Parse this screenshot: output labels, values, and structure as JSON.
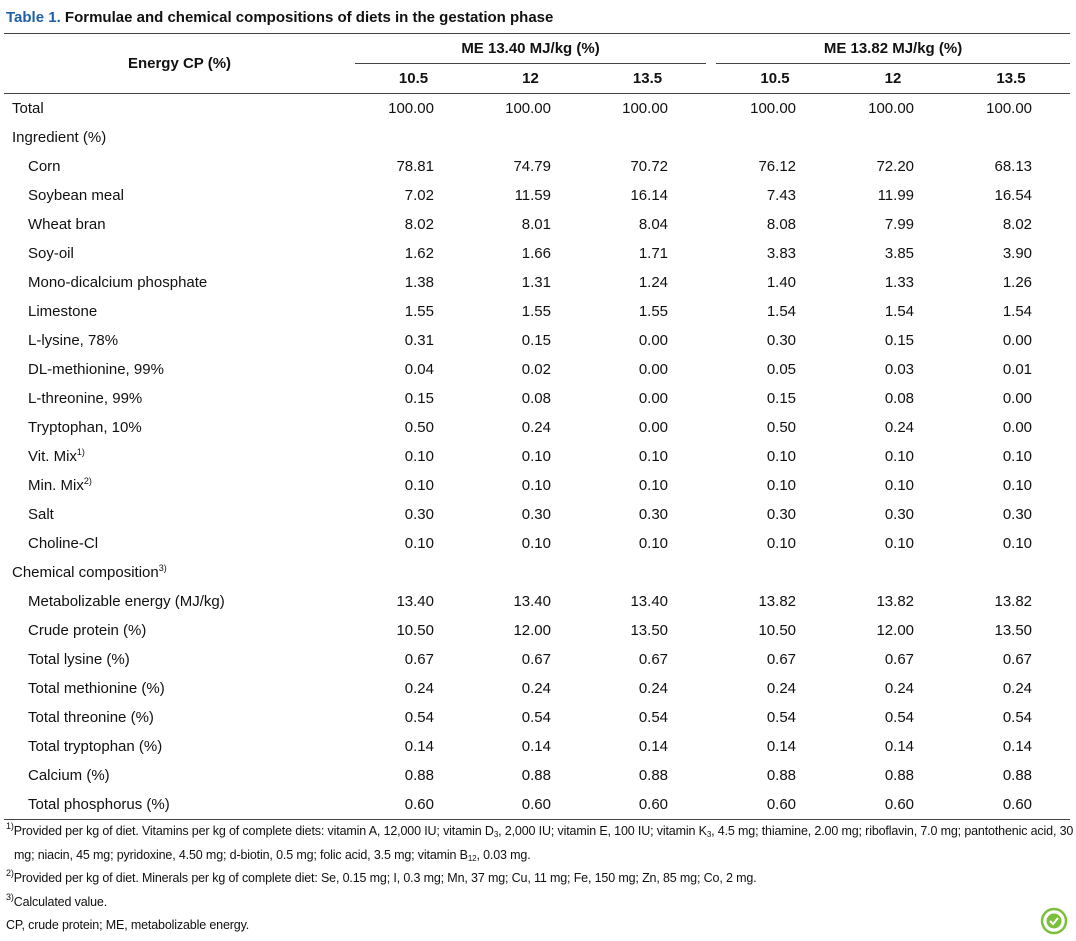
{
  "title": {
    "label": "Table 1.",
    "text": "Formulae and chemical compositions of diets in the gestation phase"
  },
  "table": {
    "stub_header": "Energy CP (%)",
    "groups": [
      {
        "label": "ME 13.40 MJ/kg (%)",
        "columns": [
          "10.5",
          "12",
          "13.5"
        ]
      },
      {
        "label": "ME 13.82 MJ/kg (%)",
        "columns": [
          "10.5",
          "12",
          "13.5"
        ]
      }
    ],
    "rows": [
      {
        "label": "Total",
        "values": [
          "100.00",
          "100.00",
          "100.00",
          "100.00",
          "100.00",
          "100.00"
        ]
      }
    ],
    "sections": [
      {
        "label": "Ingredient (%)",
        "rows": [
          {
            "label": "Corn",
            "values": [
              "78.81",
              "74.79",
              "70.72",
              "76.12",
              "72.20",
              "68.13"
            ]
          },
          {
            "label": "Soybean meal",
            "values": [
              "7.02",
              "11.59",
              "16.14",
              "7.43",
              "11.99",
              "16.54"
            ]
          },
          {
            "label": "Wheat bran",
            "values": [
              "8.02",
              "8.01",
              "8.04",
              "8.08",
              "7.99",
              "8.02"
            ]
          },
          {
            "label": "Soy-oil",
            "values": [
              "1.62",
              "1.66",
              "1.71",
              "3.83",
              "3.85",
              "3.90"
            ]
          },
          {
            "label": "Mono-dicalcium phosphate",
            "values": [
              "1.38",
              "1.31",
              "1.24",
              "1.40",
              "1.33",
              "1.26"
            ]
          },
          {
            "label": "Limestone",
            "values": [
              "1.55",
              "1.55",
              "1.55",
              "1.54",
              "1.54",
              "1.54"
            ]
          },
          {
            "label": "L-lysine, 78%",
            "values": [
              "0.31",
              "0.15",
              "0.00",
              "0.30",
              "0.15",
              "0.00"
            ]
          },
          {
            "label": "DL-methionine, 99%",
            "values": [
              "0.04",
              "0.02",
              "0.00",
              "0.05",
              "0.03",
              "0.01"
            ]
          },
          {
            "label": "L-threonine, 99%",
            "values": [
              "0.15",
              "0.08",
              "0.00",
              "0.15",
              "0.08",
              "0.00"
            ]
          },
          {
            "label": "Tryptophan, 10%",
            "values": [
              "0.50",
              "0.24",
              "0.00",
              "0.50",
              "0.24",
              "0.00"
            ]
          },
          {
            "label": "Vit. Mix",
            "note": "1)",
            "values": [
              "0.10",
              "0.10",
              "0.10",
              "0.10",
              "0.10",
              "0.10"
            ]
          },
          {
            "label": "Min. Mix",
            "note": "2)",
            "values": [
              "0.10",
              "0.10",
              "0.10",
              "0.10",
              "0.10",
              "0.10"
            ]
          },
          {
            "label": "Salt",
            "values": [
              "0.30",
              "0.30",
              "0.30",
              "0.30",
              "0.30",
              "0.30"
            ]
          },
          {
            "label": "Choline-Cl",
            "values": [
              "0.10",
              "0.10",
              "0.10",
              "0.10",
              "0.10",
              "0.10"
            ]
          }
        ]
      },
      {
        "label": "Chemical composition",
        "note": "3)",
        "rows": [
          {
            "label": "Metabolizable energy (MJ/kg)",
            "values": [
              "13.40",
              "13.40",
              "13.40",
              "13.82",
              "13.82",
              "13.82"
            ]
          },
          {
            "label": "Crude protein (%)",
            "values": [
              "10.50",
              "12.00",
              "13.50",
              "10.50",
              "12.00",
              "13.50"
            ]
          },
          {
            "label": "Total lysine (%)",
            "values": [
              "0.67",
              "0.67",
              "0.67",
              "0.67",
              "0.67",
              "0.67"
            ]
          },
          {
            "label": "Total methionine (%)",
            "values": [
              "0.24",
              "0.24",
              "0.24",
              "0.24",
              "0.24",
              "0.24"
            ]
          },
          {
            "label": "Total threonine (%)",
            "values": [
              "0.54",
              "0.54",
              "0.54",
              "0.54",
              "0.54",
              "0.54"
            ]
          },
          {
            "label": "Total tryptophan (%)",
            "values": [
              "0.14",
              "0.14",
              "0.14",
              "0.14",
              "0.14",
              "0.14"
            ]
          },
          {
            "label": "Calcium (%)",
            "values": [
              "0.88",
              "0.88",
              "0.88",
              "0.88",
              "0.88",
              "0.88"
            ]
          },
          {
            "label": "Total phosphorus (%)",
            "values": [
              "0.60",
              "0.60",
              "0.60",
              "0.60",
              "0.60",
              "0.60"
            ]
          }
        ]
      }
    ]
  },
  "footnotes": [
    {
      "mark": "1)",
      "parts": [
        {
          "text": "Provided per kg of diet. Vitamins per kg of complete diets: vitamin A, 12,000 IU; vitamin D"
        },
        {
          "sub": "3"
        },
        {
          "text": ", 2,000 IU; vitamin E, 100 IU; vitamin K"
        },
        {
          "sub": "3"
        },
        {
          "text": ", 4.5 mg; thiamine, 2.00 mg; riboflavin, 7.0 mg; pantothenic acid, 30 mg; niacin, 45 mg; pyridoxine, 4.50 mg; d-biotin, 0.5 mg; folic acid, 3.5 mg; vitamin B"
        },
        {
          "sub": "12"
        },
        {
          "text": ", 0.03 mg."
        }
      ]
    },
    {
      "mark": "2)",
      "parts": [
        {
          "text": "Provided per kg of diet. Minerals per kg of complete diet: Se, 0.15 mg; I, 0.3 mg; Mn, 37 mg; Cu, 11 mg; Fe, 150 mg; Zn, 85 mg; Co, 2 mg."
        }
      ]
    },
    {
      "mark": "3)",
      "parts": [
        {
          "text": "Calculated value."
        }
      ]
    },
    {
      "parts": [
        {
          "text": "CP, crude protein; ME, metabolizable energy."
        }
      ]
    }
  ]
}
